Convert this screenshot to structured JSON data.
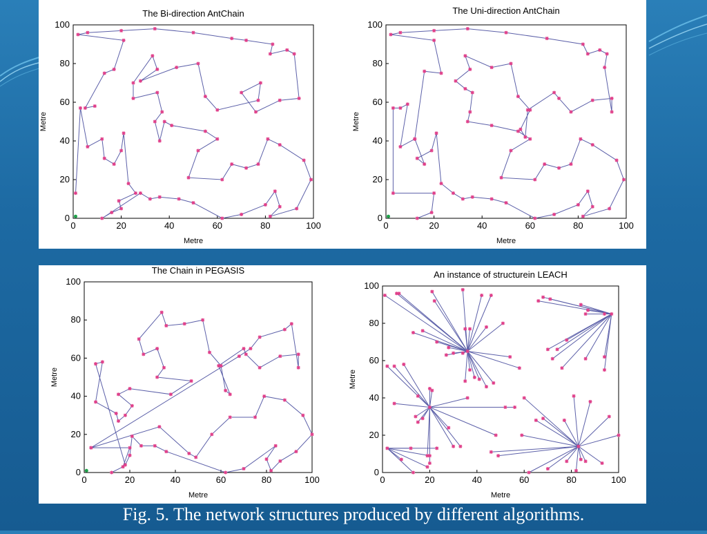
{
  "caption": "Fig. 5. The network structures produced by different algorithms.",
  "colors": {
    "line": "#5b5fa8",
    "marker": "#e0408a",
    "sink": "#1fa34a",
    "axis": "#000000"
  },
  "chart_data": [
    {
      "type": "line",
      "title": "The Bi-direction AntChain",
      "xlabel": "Metre",
      "ylabel": "Metre",
      "xlim": [
        0,
        100
      ],
      "ylim": [
        0,
        100
      ],
      "xticks": [
        0,
        20,
        40,
        60,
        80,
        100
      ],
      "yticks": [
        0,
        20,
        40,
        60,
        80,
        100
      ],
      "sink": [
        1,
        1
      ],
      "points": [
        [
          1,
          13
        ],
        [
          3,
          57
        ],
        [
          6,
          37
        ],
        [
          12,
          41
        ],
        [
          13,
          31
        ],
        [
          17,
          28
        ],
        [
          20,
          35
        ],
        [
          21,
          44
        ],
        [
          23,
          18
        ],
        [
          26,
          13
        ],
        [
          19,
          9
        ],
        [
          20,
          5
        ],
        [
          16,
          3
        ],
        [
          12,
          0
        ],
        [
          28,
          13
        ],
        [
          32,
          10
        ],
        [
          36,
          11
        ],
        [
          44,
          10
        ],
        [
          50,
          8
        ],
        [
          62,
          0
        ],
        [
          70,
          2
        ],
        [
          80,
          7
        ],
        [
          84,
          14
        ],
        [
          86,
          6
        ],
        [
          82,
          1
        ],
        [
          93,
          5
        ],
        [
          99,
          20
        ],
        [
          96,
          30
        ],
        [
          86,
          38
        ],
        [
          81,
          41
        ],
        [
          77,
          28
        ],
        [
          72,
          26
        ],
        [
          66,
          28
        ],
        [
          62,
          20
        ],
        [
          48,
          21
        ],
        [
          52,
          35
        ],
        [
          60,
          41
        ],
        [
          55,
          45
        ],
        [
          41,
          48
        ],
        [
          38,
          50
        ],
        [
          36,
          40
        ],
        [
          34,
          50
        ],
        [
          37,
          55
        ],
        [
          35,
          65
        ],
        [
          25,
          62
        ],
        [
          25,
          70
        ],
        [
          33,
          84
        ],
        [
          35,
          77
        ],
        [
          28,
          71
        ],
        [
          43,
          78
        ],
        [
          52,
          80
        ],
        [
          55,
          63
        ],
        [
          60,
          56
        ],
        [
          77,
          61
        ],
        [
          78,
          70
        ],
        [
          70,
          65
        ],
        [
          76,
          55
        ],
        [
          86,
          61
        ],
        [
          94,
          62
        ],
        [
          92,
          85
        ],
        [
          89,
          87
        ],
        [
          82,
          85
        ],
        [
          83,
          90
        ],
        [
          72,
          92
        ],
        [
          66,
          93
        ],
        [
          50,
          96
        ],
        [
          34,
          98
        ],
        [
          20,
          97
        ],
        [
          6,
          96
        ],
        [
          2,
          95
        ],
        [
          21,
          92
        ],
        [
          17,
          77
        ],
        [
          13,
          75
        ],
        [
          5,
          57
        ],
        [
          9,
          58
        ]
      ]
    },
    {
      "type": "line",
      "title": "The Uni-direction AntChain",
      "xlabel": "Metre",
      "ylabel": "Metre",
      "xlim": [
        0,
        100
      ],
      "ylim": [
        0,
        100
      ],
      "xticks": [
        0,
        20,
        40,
        60,
        80,
        100
      ],
      "yticks": [
        0,
        20,
        40,
        60,
        80,
        100
      ],
      "sink": [
        1,
        1
      ],
      "points": [
        [
          13,
          0
        ],
        [
          19,
          3
        ],
        [
          20,
          13
        ],
        [
          3,
          13
        ],
        [
          3,
          57
        ],
        [
          6,
          57
        ],
        [
          9,
          59
        ],
        [
          6,
          37
        ],
        [
          12,
          41
        ],
        [
          16,
          28
        ],
        [
          13,
          31
        ],
        [
          19,
          35
        ],
        [
          21,
          44
        ],
        [
          23,
          18
        ],
        [
          28,
          13
        ],
        [
          32,
          10
        ],
        [
          36,
          11
        ],
        [
          44,
          10
        ],
        [
          50,
          8
        ],
        [
          62,
          0
        ],
        [
          70,
          2
        ],
        [
          80,
          7
        ],
        [
          84,
          14
        ],
        [
          86,
          6
        ],
        [
          82,
          1
        ],
        [
          93,
          5
        ],
        [
          99,
          20
        ],
        [
          96,
          30
        ],
        [
          86,
          38
        ],
        [
          81,
          41
        ],
        [
          77,
          28
        ],
        [
          72,
          26
        ],
        [
          66,
          28
        ],
        [
          62,
          20
        ],
        [
          48,
          21
        ],
        [
          52,
          35
        ],
        [
          60,
          41
        ],
        [
          55,
          45
        ],
        [
          44,
          48
        ],
        [
          34,
          50
        ],
        [
          35,
          55
        ],
        [
          36,
          65
        ],
        [
          33,
          67
        ],
        [
          29,
          71
        ],
        [
          35,
          77
        ],
        [
          33,
          84
        ],
        [
          44,
          78
        ],
        [
          52,
          80
        ],
        [
          55,
          63
        ],
        [
          60,
          56
        ],
        [
          56,
          46
        ],
        [
          58,
          42
        ],
        [
          59,
          56
        ],
        [
          70,
          65
        ],
        [
          72,
          62
        ],
        [
          77,
          55
        ],
        [
          86,
          61
        ],
        [
          94,
          62
        ],
        [
          94,
          55
        ],
        [
          91,
          78
        ],
        [
          92,
          85
        ],
        [
          89,
          87
        ],
        [
          84,
          85
        ],
        [
          82,
          90
        ],
        [
          67,
          93
        ],
        [
          50,
          96
        ],
        [
          34,
          98
        ],
        [
          20,
          97
        ],
        [
          6,
          96
        ],
        [
          2,
          95
        ],
        [
          20,
          92
        ],
        [
          23,
          75
        ],
        [
          16,
          76
        ],
        [
          12,
          41
        ]
      ]
    },
    {
      "type": "line",
      "title": "The Chain in PEGASIS",
      "xlabel": "Metre",
      "ylabel": "Metre",
      "xlim": [
        0,
        100
      ],
      "ylim": [
        0,
        100
      ],
      "xticks": [
        0,
        20,
        40,
        60,
        80,
        100
      ],
      "yticks": [
        0,
        20,
        40,
        60,
        80,
        100
      ],
      "sink": [
        1,
        1
      ],
      "points": [
        [
          12,
          0
        ],
        [
          17,
          3
        ],
        [
          20,
          13
        ],
        [
          3,
          13
        ],
        [
          33,
          24
        ],
        [
          46,
          10
        ],
        [
          49,
          8
        ],
        [
          56,
          20
        ],
        [
          64,
          29
        ],
        [
          75,
          29
        ],
        [
          79,
          40
        ],
        [
          88,
          38
        ],
        [
          96,
          30
        ],
        [
          100,
          20
        ],
        [
          93,
          11
        ],
        [
          86,
          6
        ],
        [
          82,
          1
        ],
        [
          80,
          7
        ],
        [
          84,
          14
        ],
        [
          70,
          2
        ],
        [
          62,
          0
        ],
        [
          36,
          11
        ],
        [
          31,
          14
        ],
        [
          25,
          14
        ],
        [
          21,
          19
        ],
        [
          20,
          9
        ],
        [
          18,
          4
        ],
        [
          5,
          57
        ],
        [
          8,
          58
        ],
        [
          5,
          37
        ],
        [
          14,
          31
        ],
        [
          15,
          27
        ],
        [
          18,
          30
        ],
        [
          21,
          35
        ],
        [
          15,
          41
        ],
        [
          20,
          44
        ],
        [
          38,
          41
        ],
        [
          47,
          48
        ],
        [
          32,
          50
        ],
        [
          35,
          55
        ],
        [
          32,
          65
        ],
        [
          26,
          62
        ],
        [
          24,
          70
        ],
        [
          34,
          84
        ],
        [
          36,
          77
        ],
        [
          44,
          78
        ],
        [
          52,
          80
        ],
        [
          55,
          63
        ],
        [
          60,
          56
        ],
        [
          62,
          43
        ],
        [
          64,
          41
        ],
        [
          59,
          56
        ],
        [
          70,
          65
        ],
        [
          71,
          62
        ],
        [
          77,
          55
        ],
        [
          86,
          61
        ],
        [
          94,
          62
        ],
        [
          94,
          55
        ],
        [
          91,
          78
        ],
        [
          88,
          75
        ],
        [
          77,
          71
        ],
        [
          73,
          65
        ],
        [
          68,
          61
        ],
        [
          3,
          13
        ]
      ]
    },
    {
      "type": "line",
      "title": "An instance of structurein LEACH",
      "xlabel": "Metre",
      "ylabel": "Metre",
      "xlim": [
        0,
        100
      ],
      "ylim": [
        0,
        100
      ],
      "xticks": [
        0,
        20,
        40,
        60,
        80,
        100
      ],
      "yticks": [
        0,
        20,
        40,
        60,
        80,
        100
      ],
      "heads": [
        {
          "pos": [
            36,
            65
          ],
          "members": [
            [
              1,
              95
            ],
            [
              6,
              96
            ],
            [
              7,
              96
            ],
            [
              21,
              97
            ],
            [
              22,
              92
            ],
            [
              34,
              98
            ],
            [
              35,
              77
            ],
            [
              37,
              77
            ],
            [
              42,
              95
            ],
            [
              46,
              95
            ],
            [
              44,
              78
            ],
            [
              51,
              80
            ],
            [
              23,
              70
            ],
            [
              17,
              76
            ],
            [
              13,
              75
            ],
            [
              28,
              67
            ],
            [
              27,
              63
            ],
            [
              30,
              64
            ],
            [
              34,
              64
            ],
            [
              35,
              49
            ],
            [
              37,
              55
            ],
            [
              39,
              51
            ],
            [
              41,
              50
            ],
            [
              44,
              46
            ],
            [
              47,
              48
            ],
            [
              54,
              62
            ],
            [
              58,
              56
            ]
          ]
        },
        {
          "pos": [
            97,
            85
          ],
          "members": [
            [
              66,
              92
            ],
            [
              68,
              94
            ],
            [
              71,
              93
            ],
            [
              84,
              90
            ],
            [
              87,
              87
            ],
            [
              86,
              85
            ],
            [
              94,
              85
            ],
            [
              78,
              71
            ],
            [
              74,
              66
            ],
            [
              70,
              66
            ],
            [
              72,
              61
            ],
            [
              76,
              56
            ],
            [
              86,
              61
            ],
            [
              94,
              62
            ],
            [
              94,
              55
            ]
          ]
        },
        {
          "pos": [
            20,
            35
          ],
          "members": [
            [
              2,
              57
            ],
            [
              5,
              57
            ],
            [
              9,
              58
            ],
            [
              5,
              37
            ],
            [
              15,
              41
            ],
            [
              20,
              45
            ],
            [
              14,
              30
            ],
            [
              15,
              27
            ],
            [
              17,
              29
            ],
            [
              21,
              44
            ],
            [
              36,
              40
            ],
            [
              48,
              20
            ],
            [
              52,
              35
            ],
            [
              56,
              35
            ],
            [
              28,
              24
            ],
            [
              30,
              14
            ],
            [
              33,
              14
            ],
            [
              19,
              9
            ],
            [
              20,
              5
            ]
          ]
        },
        {
          "pos": [
            83,
            14
          ],
          "members": [
            [
              60,
              40
            ],
            [
              65,
              28
            ],
            [
              68,
              29
            ],
            [
              77,
              28
            ],
            [
              81,
              41
            ],
            [
              88,
              38
            ],
            [
              96,
              30
            ],
            [
              100,
              20
            ],
            [
              59,
              20
            ],
            [
              84,
              7
            ],
            [
              82,
              1
            ],
            [
              86,
              6
            ],
            [
              93,
              5
            ],
            [
              62,
              0
            ],
            [
              70,
              2
            ],
            [
              78,
              6
            ],
            [
              46,
              11
            ],
            [
              49,
              9
            ]
          ]
        },
        {
          "pos": [
            2,
            13
          ],
          "members": [
            [
              13,
              0
            ],
            [
              19,
              3
            ],
            [
              20,
              9
            ],
            [
              23,
              13
            ],
            [
              12,
              13
            ],
            [
              8,
              7
            ]
          ]
        }
      ]
    }
  ]
}
